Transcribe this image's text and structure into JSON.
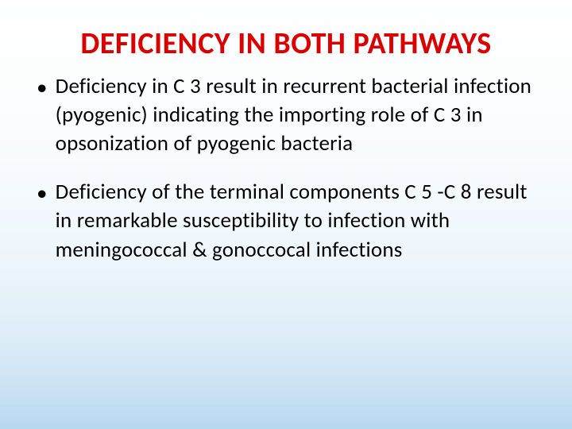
{
  "slide": {
    "title": "DEFICIENCY IN BOTH PATHWAYS",
    "title_color": "#d90000",
    "title_fontsize": 38,
    "body_color": "#000000",
    "body_fontsize": 27,
    "background_gradient_top": "#ffffff",
    "background_gradient_bottom": "#b8d8f0",
    "bullets": [
      "Deficiency in C 3 result in recurrent bacterial infection (pyogenic) indicating the importing role of C 3 in opsonization of pyogenic bacteria",
      "Deficiency of the terminal components C 5 -C 8 result in remarkable susceptibility to infection with meningococcal & gonoccocal infections"
    ]
  }
}
